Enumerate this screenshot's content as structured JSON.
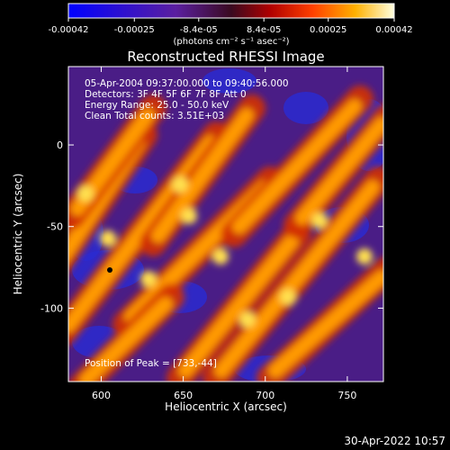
{
  "colorbar": {
    "ticks": [
      {
        "value": -0.00042,
        "label": "-0.00042"
      },
      {
        "value": -0.00025,
        "label": "-0.00025"
      },
      {
        "value": -8.4e-05,
        "label": "-8.4e-05"
      },
      {
        "value": 8.4e-05,
        "label": "8.4e-05"
      },
      {
        "value": 0.00025,
        "label": "0.00025"
      },
      {
        "value": 0.00042,
        "label": "0.00042"
      }
    ],
    "range": [
      -0.00042,
      0.00042
    ],
    "unit_label": "(photons cm⁻² s⁻¹ asec⁻²)"
  },
  "chart_data": {
    "type": "heatmap",
    "title": "Reconstructed RHESSI Image",
    "xlabel": "Heliocentric X (arcsec)",
    "ylabel": "Heliocentric Y (arcsec)",
    "xlim": [
      580,
      772
    ],
    "ylim": [
      -145,
      48
    ],
    "x_ticks": [
      600,
      650,
      700,
      750
    ],
    "y_ticks": [
      0,
      -50,
      -100
    ],
    "info_lines": [
      "05-Apr-2004 09:37:00.000 to 09:40:56.000",
      "Detectors: 3F 4F 5F 6F 7F 8F Att 0",
      "Energy Range: 25.0 - 50.0 keV",
      "Clean     Total counts: 3.51E+03"
    ],
    "peak_label": "Position of Peak = [733,-44]",
    "peak": [
      733,
      -44
    ]
  },
  "timestamp": "30-Apr-2022 10:57"
}
